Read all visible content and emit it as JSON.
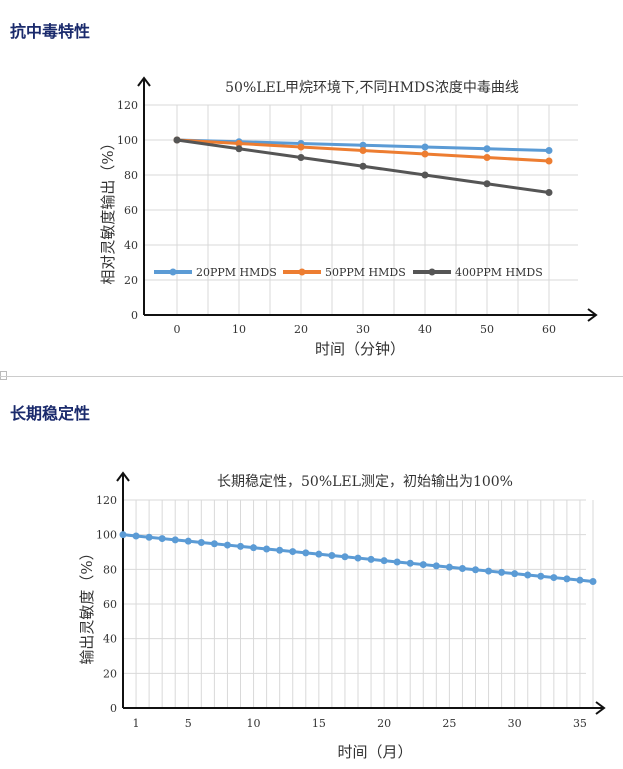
{
  "sections": [
    {
      "heading": "抗中毒特性"
    },
    {
      "heading": "长期稳定性"
    }
  ],
  "chart_data": [
    {
      "type": "line",
      "title": "50%LEL甲烷环境下,不同HMDS浓度中毒曲线",
      "xlabel": "时间（分钟）",
      "ylabel": "相对灵敏度输出（%）",
      "x": [
        0,
        10,
        20,
        30,
        40,
        50,
        60
      ],
      "xticks": [
        "0",
        "10",
        "20",
        "30",
        "40",
        "50",
        "60"
      ],
      "ylim": [
        0,
        120
      ],
      "yticks": [
        "0",
        "20",
        "40",
        "60",
        "80",
        "100",
        "120"
      ],
      "grid": true,
      "legend": "bottom-left-inside",
      "series": [
        {
          "name": "20PPM HMDS",
          "color": "#5b9bd5",
          "values": [
            100,
            99,
            98,
            97,
            96,
            95,
            94
          ]
        },
        {
          "name": "50PPM HMDS",
          "color": "#ed7d31",
          "values": [
            100,
            98,
            96,
            94,
            92,
            90,
            88
          ]
        },
        {
          "name": "400PPM HMDS",
          "color": "#555555",
          "values": [
            100,
            95,
            90,
            85,
            80,
            75,
            70
          ]
        }
      ]
    },
    {
      "type": "line",
      "title": "长期稳定性，50%LEL测定，初始输出为100%",
      "xlabel": "时间（月）",
      "ylabel": "输出灵敏度（%）",
      "x": [
        0,
        1,
        2,
        3,
        4,
        5,
        6,
        7,
        8,
        9,
        10,
        11,
        12,
        13,
        14,
        15,
        16,
        17,
        18,
        19,
        20,
        21,
        22,
        23,
        24,
        25,
        26,
        27,
        28,
        29,
        30,
        31,
        32,
        33,
        34,
        35,
        36
      ],
      "xticks": [
        "1",
        "5",
        "10",
        "15",
        "20",
        "25",
        "30",
        "35"
      ],
      "xtick_values": [
        1,
        5,
        10,
        15,
        20,
        25,
        30,
        35
      ],
      "ylim": [
        0,
        120
      ],
      "yticks": [
        "0",
        "20",
        "40",
        "60",
        "80",
        "100",
        "120"
      ],
      "grid": true,
      "series": [
        {
          "color": "#5b9bd5",
          "values": [
            100,
            99.25,
            98.5,
            97.75,
            97,
            96.25,
            95.5,
            94.75,
            94,
            93.25,
            92.5,
            91.75,
            91,
            90.25,
            89.5,
            88.75,
            88,
            87.25,
            86.5,
            85.75,
            85,
            84.25,
            83.5,
            82.75,
            82,
            81.25,
            80.5,
            79.75,
            79,
            78.25,
            77.5,
            76.75,
            76,
            75.25,
            74.5,
            73.75,
            73
          ]
        }
      ]
    }
  ]
}
